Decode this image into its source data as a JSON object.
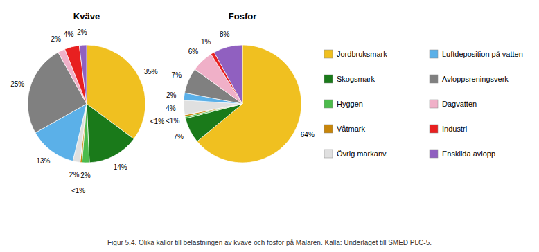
{
  "chart_data": [
    {
      "type": "pie",
      "title": "Kväve",
      "categories": [
        "Jordbruksmark",
        "Skogsmark",
        "Hyggen",
        "Våtmark",
        "Övrig markanv.",
        "Luftdeposition på vatten",
        "Avloppsreningsverk",
        "Dagvatten",
        "Industri",
        "Enskilda avlopp"
      ],
      "values": [
        35,
        14,
        2,
        0.5,
        2,
        13,
        25,
        2,
        4,
        2
      ],
      "value_labels": [
        "35%",
        "14%",
        "2%",
        "<1%",
        "2%",
        "13%",
        "25%",
        "2%",
        "4%",
        "2%"
      ],
      "colors": [
        "#F0C020",
        "#1A7A1A",
        "#4CBB4C",
        "#C8860A",
        "#E0E0E0",
        "#5BB0E8",
        "#808080",
        "#F0B0C8",
        "#E82020",
        "#9060C0"
      ],
      "data_labels": true,
      "legend": "right",
      "annotations": [
        "Figur 5.4. Olika källor till belastningen av kväve och fosfor på Mälaren. Källa: Underlaget till SMED PLC-5."
      ]
    },
    {
      "type": "pie",
      "title": "Fosfor",
      "values": [
        64,
        7,
        0.5,
        0.5,
        4,
        2,
        7,
        6,
        1,
        8
      ],
      "value_labels": [
        "64%",
        "7%",
        "<1%",
        "<1%",
        "4%",
        "2%",
        "7%",
        "6%",
        "1%",
        "8%"
      ],
      "colors": [
        "#F0C020",
        "#1A7A1A",
        "#4CBB4C",
        "#C8860A",
        "#E0E0E0",
        "#5BB0E8",
        "#808080",
        "#F0B0C8",
        "#E82020",
        "#9060C0"
      ],
      "data_labels": true
    }
  ]
}
